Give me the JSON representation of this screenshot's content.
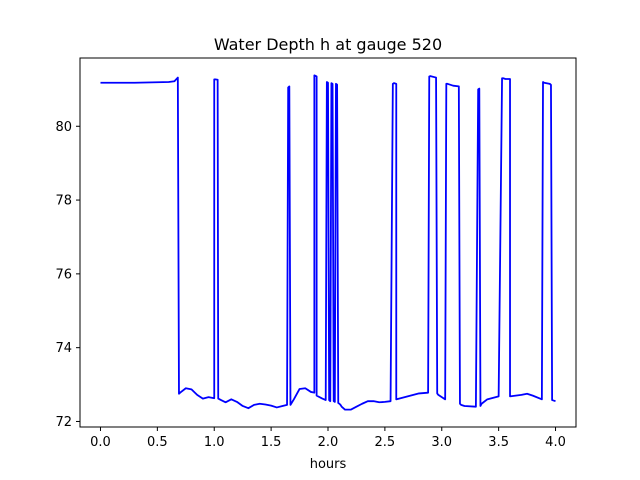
{
  "chart_data": {
    "type": "line",
    "title": "Water Depth h at gauge 520",
    "xlabel": "hours",
    "ylabel": "",
    "xlim": [
      -0.18,
      4.18
    ],
    "ylim": [
      71.85,
      81.85
    ],
    "xticks": [
      0.0,
      0.5,
      1.0,
      1.5,
      2.0,
      2.5,
      3.0,
      3.5,
      4.0
    ],
    "xtick_labels": [
      "0.0",
      "0.5",
      "1.0",
      "1.5",
      "2.0",
      "2.5",
      "3.0",
      "3.5",
      "4.0"
    ],
    "yticks": [
      72,
      74,
      76,
      78,
      80
    ],
    "ytick_labels": [
      "72",
      "74",
      "76",
      "78",
      "80"
    ],
    "grid": false,
    "line_color": "#0000ff",
    "series": [
      {
        "x": [
          0.0,
          0.3,
          0.6,
          0.65,
          0.68,
          0.69,
          0.7,
          0.75,
          0.8,
          0.85,
          0.9,
          0.95,
          1.0,
          1.0,
          1.01,
          1.03,
          1.035,
          1.06,
          1.1,
          1.15,
          1.2,
          1.25,
          1.3,
          1.35,
          1.4,
          1.45,
          1.5,
          1.55,
          1.6,
          1.64,
          1.65,
          1.66,
          1.67,
          1.68,
          1.7,
          1.75,
          1.8,
          1.85,
          1.88,
          1.88,
          1.9,
          1.9,
          1.95,
          1.98,
          1.99,
          2.0,
          2.01,
          2.02,
          2.03,
          2.04,
          2.05,
          2.06,
          2.07,
          2.08,
          2.09,
          2.1,
          2.11,
          2.12,
          2.15,
          2.2,
          2.25,
          2.3,
          2.35,
          2.4,
          2.45,
          2.5,
          2.55,
          2.57,
          2.58,
          2.6,
          2.6,
          2.7,
          2.8,
          2.88,
          2.89,
          2.9,
          2.95,
          2.96,
          2.97,
          3.03,
          3.04,
          3.05,
          3.1,
          3.15,
          3.16,
          3.17,
          3.2,
          3.3,
          3.32,
          3.33,
          3.34,
          3.35,
          3.4,
          3.5,
          3.53,
          3.54,
          3.56,
          3.6,
          3.6,
          3.65,
          3.7,
          3.75,
          3.8,
          3.88,
          3.89,
          3.9,
          3.95,
          3.96,
          3.97,
          4.0
        ],
        "y": [
          81.18,
          81.18,
          81.2,
          81.22,
          81.32,
          72.75,
          72.78,
          72.9,
          72.87,
          72.72,
          72.62,
          72.66,
          72.63,
          81.27,
          81.27,
          81.26,
          72.62,
          72.58,
          72.52,
          72.6,
          72.53,
          72.42,
          72.36,
          72.45,
          72.48,
          72.46,
          72.43,
          72.38,
          72.42,
          72.45,
          81.05,
          81.08,
          72.45,
          72.5,
          72.6,
          72.88,
          72.9,
          72.8,
          72.78,
          81.38,
          81.35,
          72.7,
          72.62,
          72.58,
          81.2,
          81.18,
          72.58,
          72.55,
          81.17,
          81.15,
          72.55,
          72.53,
          81.15,
          81.13,
          72.5,
          72.48,
          72.45,
          72.4,
          72.32,
          72.32,
          72.4,
          72.48,
          72.55,
          72.55,
          72.52,
          72.53,
          72.55,
          81.15,
          81.17,
          81.15,
          72.6,
          72.68,
          72.76,
          72.78,
          81.35,
          81.36,
          81.32,
          72.76,
          72.72,
          72.6,
          81.15,
          81.15,
          81.1,
          81.08,
          72.48,
          72.45,
          72.42,
          72.4,
          81.0,
          81.02,
          72.42,
          72.48,
          72.6,
          72.68,
          81.3,
          81.3,
          81.28,
          81.28,
          72.68,
          72.7,
          72.72,
          72.75,
          72.7,
          72.6,
          81.2,
          81.18,
          81.15,
          81.12,
          72.58,
          72.55
        ]
      }
    ]
  }
}
